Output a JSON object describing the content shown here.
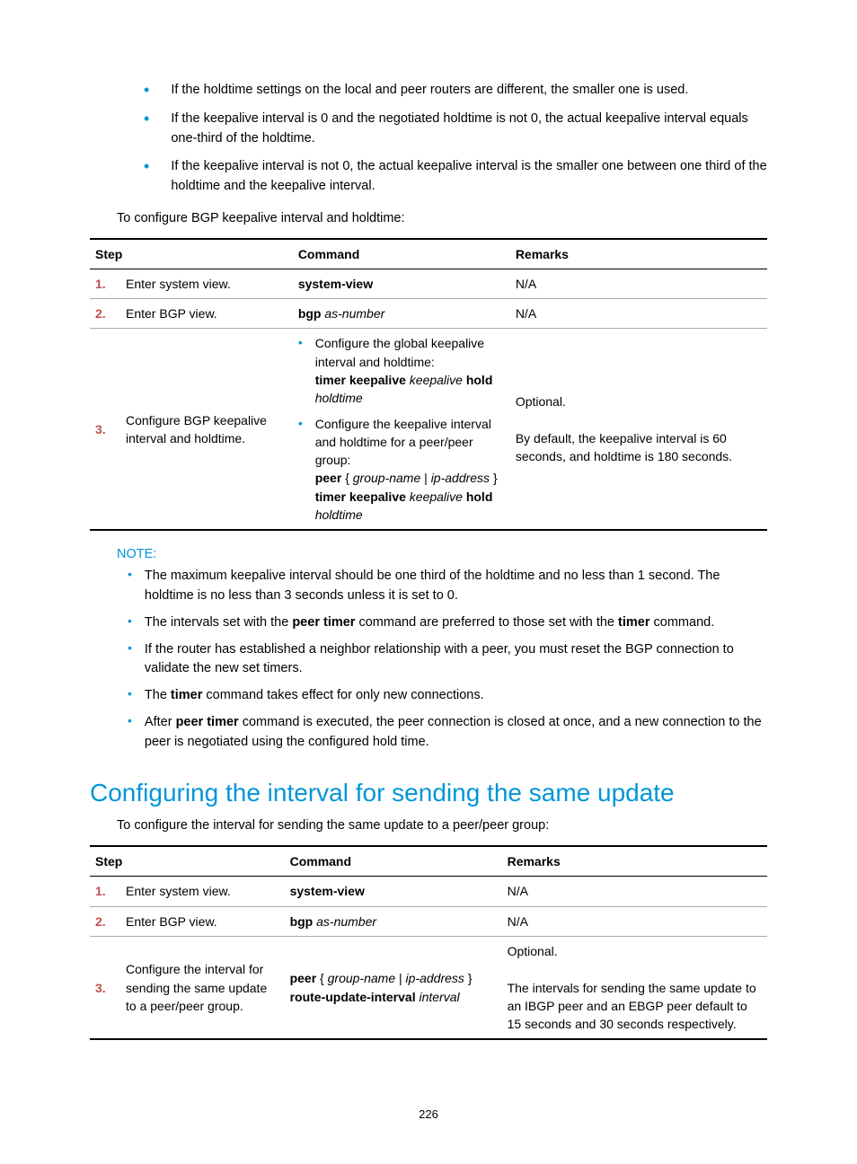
{
  "top_bullets": [
    "If the holdtime settings on the local and peer routers are different, the smaller one is used.",
    "If the keepalive interval is 0 and the negotiated holdtime is not 0, the actual keepalive interval equals one-third of the holdtime.",
    "If the keepalive interval is not 0, the actual keepalive interval is the smaller one between one third of the holdtime and the keepalive interval."
  ],
  "intro1": "To configure BGP keepalive interval and holdtime:",
  "table_headers": {
    "step": "Step",
    "command": "Command",
    "remarks": "Remarks"
  },
  "table1": {
    "r1": {
      "num": "1.",
      "step": "Enter system view.",
      "cmd": "system-view",
      "remark": "N/A"
    },
    "r2": {
      "num": "2.",
      "step": "Enter BGP view.",
      "cmd_b": "bgp",
      "cmd_i": "as-number",
      "remark": "N/A"
    },
    "r3": {
      "num": "3.",
      "step": "Configure BGP keepalive interval and holdtime.",
      "b1a": "Configure the global keepalive interval and holdtime:",
      "b1b_b1": "timer keepalive",
      "b1b_i1": "keepalive",
      "b1b_b2": "hold",
      "b1b_i2": "holdtime",
      "b2a": "Configure the keepalive interval and holdtime for a peer/peer group:",
      "b2b_b1": "peer",
      "b2b_t1": "{",
      "b2b_i1": "group-name",
      "b2b_t2": "|",
      "b2b_i2": "ip-address",
      "b2b_t3": "}",
      "b2b_b2": "timer keepalive",
      "b2b_i3": "keepalive",
      "b2b_b3": "hold",
      "b2b_i4": "holdtime",
      "remark1": "Optional.",
      "remark2": "By default, the keepalive interval is 60 seconds, and holdtime is 180 seconds."
    }
  },
  "note_label": "NOTE:",
  "note_items": {
    "n1": "The maximum keepalive interval should be one third of the holdtime and no less than 1 second. The holdtime is no less than 3 seconds unless it is set to 0.",
    "n2a": "The intervals set with the ",
    "n2b": "peer timer",
    "n2c": " command are preferred to those set with the ",
    "n2d": "timer",
    "n2e": " command.",
    "n3": "If the router has established a neighbor relationship with a peer, you must reset the BGP connection to validate the new set timers.",
    "n4a": "The ",
    "n4b": "timer",
    "n4c": " command takes effect for only new connections.",
    "n5a": "After ",
    "n5b": "peer timer",
    "n5c": " command is executed, the peer connection is closed at once, and a new connection to the peer is negotiated using the configured hold time."
  },
  "section_title": "Configuring the interval for sending the same update",
  "intro2": "To configure the interval for sending the same update to a peer/peer group:",
  "table2": {
    "r1": {
      "num": "1.",
      "step": "Enter system view.",
      "cmd": "system-view",
      "remark": "N/A"
    },
    "r2": {
      "num": "2.",
      "step": "Enter BGP view.",
      "cmd_b": "bgp",
      "cmd_i": "as-number",
      "remark": "N/A"
    },
    "r3": {
      "num": "3.",
      "step": "Configure the interval for sending the same update to a peer/peer group.",
      "cmd_b1": "peer",
      "cmd_t1": "{",
      "cmd_i1": "group-name",
      "cmd_t2": "|",
      "cmd_i2": "ip-address",
      "cmd_t3": "}",
      "cmd_b2": "route-update-interval",
      "cmd_i3": "interval",
      "remark1": "Optional.",
      "remark2": "The intervals for sending the same update to an IBGP peer and an EBGP peer default to 15 seconds and 30 seconds respectively."
    }
  },
  "page_number": "226"
}
